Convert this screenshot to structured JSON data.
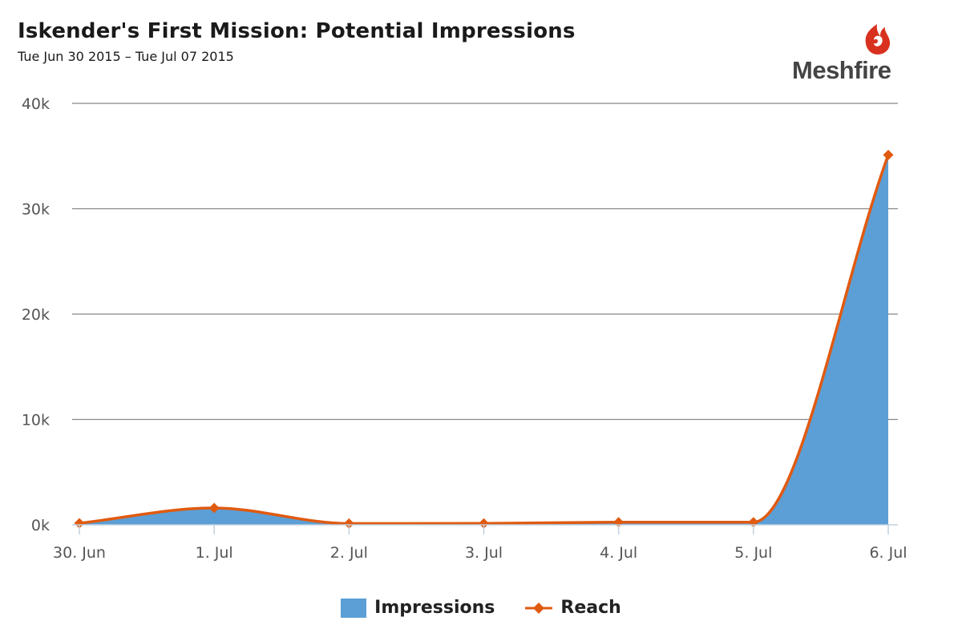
{
  "header": {
    "title": "Iskender's First Mission: Potential Impressions",
    "subtitle": "Tue Jun 30 2015 – Tue Jul 07 2015"
  },
  "logo": {
    "text": "Meshfire",
    "color": "#d9311f"
  },
  "chart_data": {
    "type": "area",
    "title": "Iskender's First Mission: Potential Impressions",
    "subtitle": "Tue Jun 30 2015 – Tue Jul 07 2015",
    "categories": [
      "30. Jun",
      "1. Jul",
      "2. Jul",
      "3. Jul",
      "4. Jul",
      "5. Jul",
      "6. Jul"
    ],
    "y_ticks": [
      "0k",
      "10k",
      "20k",
      "30k",
      "40k"
    ],
    "ylim": [
      0,
      40000
    ],
    "grid": true,
    "legend_position": "bottom-center",
    "series": [
      {
        "name": "Impressions",
        "type": "area",
        "color": "#5b9fd6",
        "values": [
          150,
          1500,
          120,
          130,
          250,
          250,
          35000
        ]
      },
      {
        "name": "Reach",
        "type": "line",
        "marker": "diamond",
        "color": "#e05a10",
        "values": [
          150,
          1600,
          120,
          130,
          250,
          250,
          35100
        ]
      }
    ]
  }
}
